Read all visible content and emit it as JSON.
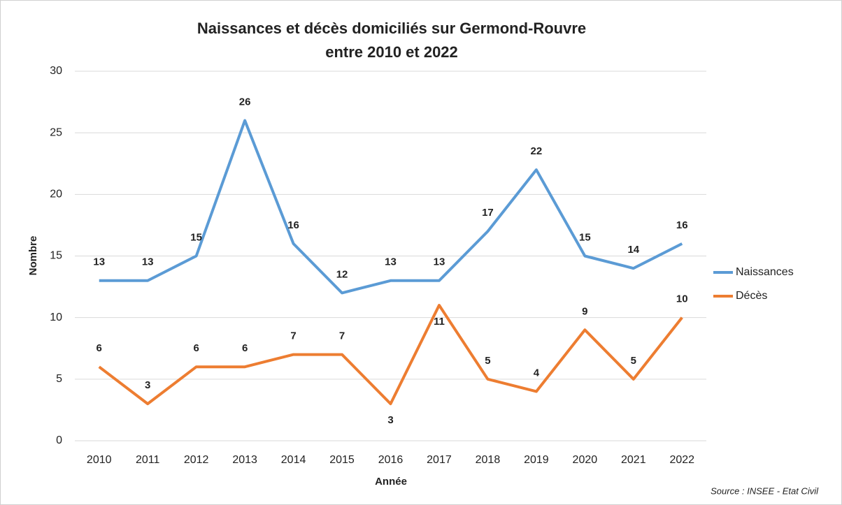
{
  "chart_data": {
    "type": "line",
    "title": [
      "Naissances et décès domiciliés sur Germond-Rouvre",
      "entre 2010 et 2022"
    ],
    "x_label": "Année",
    "y_label": "Nombre",
    "source": "Source : INSEE - Etat Civil",
    "categories": [
      "2010",
      "2011",
      "2012",
      "2013",
      "2014",
      "2015",
      "2016",
      "2017",
      "2018",
      "2019",
      "2020",
      "2021",
      "2022"
    ],
    "series": [
      {
        "name": "Naissances",
        "color": "#5b9bd5",
        "values": [
          13,
          13,
          15,
          26,
          16,
          12,
          13,
          13,
          17,
          22,
          15,
          14,
          16
        ]
      },
      {
        "name": "Décès",
        "color": "#ed7d31",
        "values": [
          6,
          3,
          6,
          6,
          7,
          7,
          3,
          11,
          5,
          4,
          9,
          5,
          10
        ]
      }
    ],
    "ylim": [
      0,
      30
    ],
    "yticks": [
      0,
      5,
      10,
      15,
      20,
      25,
      30
    ],
    "grid": true,
    "legend": "right",
    "data_labels": true
  }
}
